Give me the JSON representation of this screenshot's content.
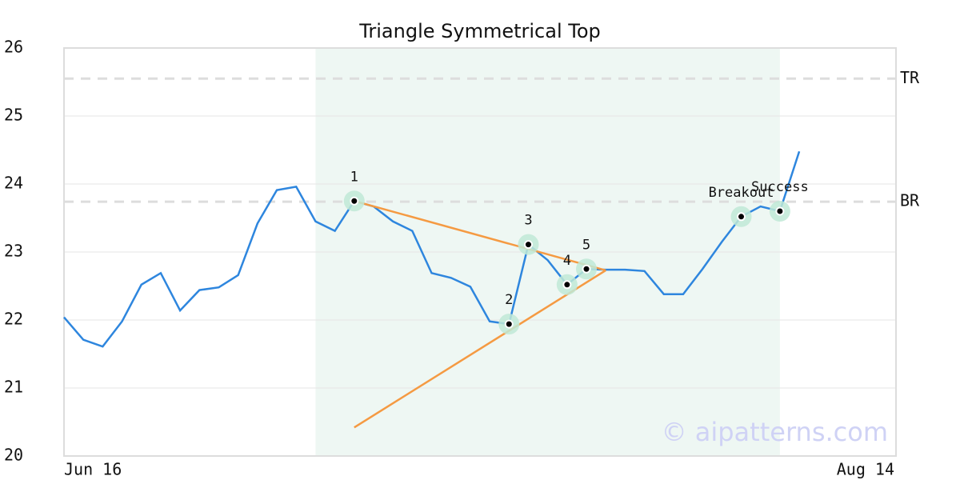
{
  "chart_data": {
    "type": "line",
    "title": "Triangle Symmetrical Top",
    "watermark": "© aipatterns.com",
    "categories": [
      "Jun 16",
      null,
      null,
      null,
      null,
      null,
      null,
      null,
      null,
      null,
      null,
      null,
      null,
      null,
      null,
      null,
      null,
      null,
      null,
      null,
      null,
      null,
      null,
      null,
      null,
      null,
      null,
      null,
      null,
      null,
      null,
      null,
      null,
      null,
      null,
      null,
      null,
      null,
      null,
      null,
      null,
      null,
      null,
      "Aug 14"
    ],
    "series": [
      {
        "color": "#2e86de",
        "values": [
          22.04,
          21.71,
          21.61,
          21.98,
          22.52,
          22.69,
          22.14,
          22.44,
          22.48,
          22.66,
          23.42,
          23.91,
          23.96,
          23.45,
          23.31,
          23.75,
          23.67,
          23.45,
          23.31,
          22.69,
          22.62,
          22.49,
          21.98,
          21.94,
          23.11,
          22.88,
          22.52,
          22.75,
          22.74,
          22.74,
          22.72,
          22.38,
          22.38,
          22.75,
          23.15,
          23.52,
          23.67,
          23.6,
          24.48,
          null,
          null,
          null,
          null,
          null
        ]
      }
    ],
    "ylim": [
      20,
      26
    ],
    "yticks": [
      20,
      21,
      22,
      23,
      24,
      25,
      26
    ],
    "grid": true,
    "shaded_range": [
      13,
      37
    ],
    "shade_color": "#eef7f3",
    "levels": [
      {
        "label": "TR",
        "value": 25.55
      },
      {
        "label": "BR",
        "value": 23.74
      }
    ],
    "trendlines": [
      {
        "color": "#f59a42",
        "x": [
          15,
          28
        ],
        "values": [
          23.75,
          22.73
        ]
      },
      {
        "color": "#f59a42",
        "x": [
          15,
          28
        ],
        "values": [
          20.42,
          22.73
        ]
      }
    ],
    "points": [
      {
        "label": "1",
        "x": 15,
        "value": 23.75
      },
      {
        "label": "2",
        "x": 23,
        "value": 21.94
      },
      {
        "label": "3",
        "x": 24,
        "value": 23.11
      },
      {
        "label": "4",
        "x": 26,
        "value": 22.52
      },
      {
        "label": "5",
        "x": 27,
        "value": 22.75
      },
      {
        "label": "Breakout",
        "x": 35,
        "value": 23.52
      },
      {
        "label": "Success",
        "x": 37,
        "value": 23.6
      }
    ]
  }
}
